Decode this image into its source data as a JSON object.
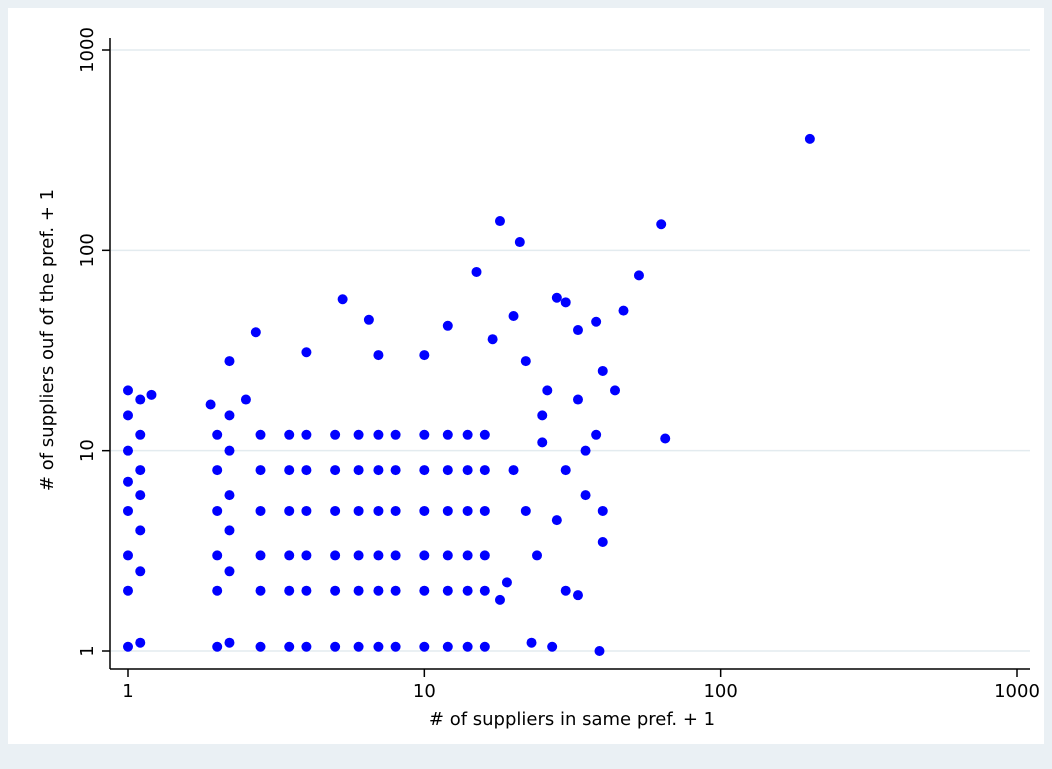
{
  "chart_data": {
    "type": "scatter",
    "x_label": "# of suppliers in same pref. + 1",
    "y_label": "# of suppliers ouf of the pref. + 1",
    "xscale": "log",
    "yscale": "log",
    "grid": true,
    "color": "#0000ff",
    "xlim": [
      1,
      1000
    ],
    "ylim": [
      1,
      1000
    ],
    "xticks": [
      1,
      10,
      100,
      1000
    ],
    "yticks": [
      1,
      10,
      100,
      1000
    ],
    "x": [
      1,
      1.1,
      1,
      1.1,
      1,
      1.1,
      1,
      1.1,
      1,
      1.1,
      1,
      1.1,
      1,
      1.1,
      1,
      2,
      2.2,
      2,
      2.2,
      2,
      2.2,
      2,
      2.2,
      2,
      2.2,
      2,
      2.2,
      1.9,
      2.8,
      2.8,
      2.8,
      2.8,
      2.8,
      2.8,
      3.5,
      3.5,
      3.5,
      3.5,
      3.5,
      3.5,
      4,
      4,
      4,
      4,
      4,
      4,
      5,
      5,
      5,
      5,
      5,
      5,
      6,
      6,
      6,
      6,
      6,
      6,
      7,
      7,
      7,
      7,
      7,
      7,
      8,
      8,
      8,
      8,
      8,
      8,
      10,
      10,
      10,
      10,
      10,
      10,
      12,
      12,
      12,
      12,
      12,
      12,
      14,
      14,
      14,
      14,
      14,
      14,
      16,
      16,
      16,
      16,
      16,
      16,
      200,
      63,
      18,
      21,
      15,
      53,
      65,
      28,
      5.3,
      2.7,
      6.5,
      12,
      47,
      30,
      33,
      38,
      17,
      20,
      40,
      44,
      39,
      35,
      38,
      40,
      40,
      30,
      33,
      27,
      35,
      33,
      25,
      22,
      26,
      10,
      7,
      4,
      2.2,
      2.5,
      1.2,
      20,
      22,
      24,
      25,
      19,
      18,
      30,
      28,
      23
    ],
    "values": [
      1.05,
      1.1,
      2,
      2.5,
      3,
      4,
      5,
      6,
      7,
      8,
      10,
      12,
      15,
      18,
      20,
      1.05,
      1.1,
      2,
      2.5,
      3,
      4,
      5,
      6,
      8,
      10,
      12,
      15,
      17,
      1.05,
      2,
      3,
      5,
      8,
      12,
      1.05,
      2,
      3,
      5,
      8,
      12,
      1.05,
      2,
      3,
      5,
      8,
      12,
      1.05,
      2,
      3,
      5,
      8,
      12,
      1.05,
      2,
      3,
      5,
      8,
      12,
      1.05,
      2,
      3,
      5,
      8,
      12,
      1.05,
      2,
      3,
      5,
      8,
      12,
      1.05,
      2,
      3,
      5,
      8,
      12,
      1.05,
      2,
      3,
      5,
      8,
      12,
      1.05,
      2,
      3,
      5,
      8,
      12,
      1.05,
      2,
      3,
      5,
      8,
      12,
      360,
      135,
      140,
      110,
      78,
      75,
      11.5,
      58,
      57,
      39,
      45,
      42,
      50,
      55,
      40,
      44,
      36,
      47,
      25,
      20,
      1,
      10,
      12,
      5,
      3.5,
      2,
      1.9,
      1.05,
      6,
      18,
      15,
      28,
      20,
      30,
      30,
      31,
      28,
      18,
      19,
      8,
      5,
      3,
      11,
      2.2,
      1.8,
      8,
      4.5,
      1.1
    ]
  }
}
